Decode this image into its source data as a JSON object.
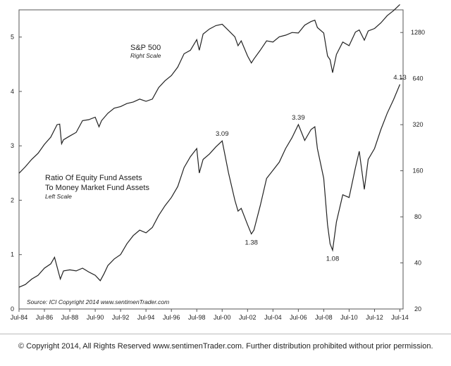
{
  "chart_data": {
    "type": "line",
    "x_ticks": [
      "Jul-84",
      "Jul-86",
      "Jul-88",
      "Jul-90",
      "Jul-92",
      "Jul-94",
      "Jul-96",
      "Jul-98",
      "Jul-00",
      "Jul-02",
      "Jul-04",
      "Jul-06",
      "Jul-08",
      "Jul-10",
      "Jul-12",
      "Jul-14"
    ],
    "xlim": [
      1984.5,
      2014.75
    ],
    "left_axis": {
      "ticks": [
        "0",
        "1",
        "2",
        "3",
        "4",
        "5"
      ],
      "ylim": [
        0,
        5.5
      ]
    },
    "right_axis": {
      "ticks": [
        "20",
        "40",
        "80",
        "160",
        "320",
        "640",
        "1280"
      ],
      "ylim": [
        20,
        1800
      ],
      "scale": "log"
    },
    "series": [
      {
        "name": "S&P 500",
        "axis": "right",
        "label": "S&P 500",
        "sublabel": "Right Scale",
        "points": [
          [
            1984.5,
            154
          ],
          [
            1985.0,
            170
          ],
          [
            1985.5,
            190
          ],
          [
            1986.0,
            208
          ],
          [
            1986.5,
            238
          ],
          [
            1987.0,
            265
          ],
          [
            1987.5,
            320
          ],
          [
            1987.7,
            323
          ],
          [
            1987.85,
            240
          ],
          [
            1988.0,
            255
          ],
          [
            1988.5,
            270
          ],
          [
            1989.0,
            285
          ],
          [
            1989.5,
            340
          ],
          [
            1990.0,
            345
          ],
          [
            1990.5,
            358
          ],
          [
            1990.8,
            310
          ],
          [
            1991.0,
            340
          ],
          [
            1991.5,
            380
          ],
          [
            1992.0,
            410
          ],
          [
            1992.5,
            420
          ],
          [
            1993.0,
            440
          ],
          [
            1993.5,
            450
          ],
          [
            1994.0,
            470
          ],
          [
            1994.5,
            455
          ],
          [
            1995.0,
            470
          ],
          [
            1995.5,
            560
          ],
          [
            1996.0,
            620
          ],
          [
            1996.5,
            670
          ],
          [
            1997.0,
            760
          ],
          [
            1997.5,
            930
          ],
          [
            1998.0,
            980
          ],
          [
            1998.5,
            1150
          ],
          [
            1998.7,
            980
          ],
          [
            1999.0,
            1250
          ],
          [
            1999.5,
            1350
          ],
          [
            2000.0,
            1420
          ],
          [
            2000.5,
            1450
          ],
          [
            2001.0,
            1320
          ],
          [
            2001.5,
            1200
          ],
          [
            2001.75,
            1050
          ],
          [
            2002.0,
            1130
          ],
          [
            2002.5,
            900
          ],
          [
            2002.8,
            810
          ],
          [
            2003.0,
            860
          ],
          [
            2003.5,
            980
          ],
          [
            2004.0,
            1130
          ],
          [
            2004.5,
            1110
          ],
          [
            2005.0,
            1200
          ],
          [
            2005.5,
            1230
          ],
          [
            2006.0,
            1280
          ],
          [
            2006.5,
            1270
          ],
          [
            2007.0,
            1430
          ],
          [
            2007.5,
            1510
          ],
          [
            2007.8,
            1540
          ],
          [
            2008.0,
            1380
          ],
          [
            2008.5,
            1270
          ],
          [
            2008.8,
            900
          ],
          [
            2009.0,
            850
          ],
          [
            2009.2,
            700
          ],
          [
            2009.5,
            920
          ],
          [
            2010.0,
            1110
          ],
          [
            2010.5,
            1050
          ],
          [
            2011.0,
            1290
          ],
          [
            2011.3,
            1330
          ],
          [
            2011.7,
            1140
          ],
          [
            2012.0,
            1310
          ],
          [
            2012.5,
            1360
          ],
          [
            2013.0,
            1480
          ],
          [
            2013.5,
            1650
          ],
          [
            2014.0,
            1780
          ],
          [
            2014.5,
            1950
          ]
        ]
      },
      {
        "name": "Ratio Of Equity Fund Assets To Money Market Fund Assets",
        "axis": "left",
        "label_lines": [
          "Ratio Of Equity Fund Assets",
          "To Money Market Fund Assets"
        ],
        "sublabel": "Left Scale",
        "points": [
          [
            1984.5,
            0.4
          ],
          [
            1985.0,
            0.45
          ],
          [
            1985.5,
            0.55
          ],
          [
            1986.0,
            0.62
          ],
          [
            1986.5,
            0.75
          ],
          [
            1987.0,
            0.83
          ],
          [
            1987.3,
            0.95
          ],
          [
            1987.75,
            0.55
          ],
          [
            1988.0,
            0.7
          ],
          [
            1988.5,
            0.72
          ],
          [
            1989.0,
            0.7
          ],
          [
            1989.5,
            0.75
          ],
          [
            1990.0,
            0.68
          ],
          [
            1990.5,
            0.62
          ],
          [
            1990.9,
            0.52
          ],
          [
            1991.2,
            0.65
          ],
          [
            1991.5,
            0.8
          ],
          [
            1992.0,
            0.92
          ],
          [
            1992.5,
            1.0
          ],
          [
            1993.0,
            1.2
          ],
          [
            1993.5,
            1.35
          ],
          [
            1994.0,
            1.45
          ],
          [
            1994.5,
            1.4
          ],
          [
            1995.0,
            1.5
          ],
          [
            1995.5,
            1.72
          ],
          [
            1996.0,
            1.9
          ],
          [
            1996.5,
            2.05
          ],
          [
            1997.0,
            2.25
          ],
          [
            1997.5,
            2.6
          ],
          [
            1998.0,
            2.8
          ],
          [
            1998.5,
            2.95
          ],
          [
            1998.7,
            2.5
          ],
          [
            1999.0,
            2.75
          ],
          [
            1999.5,
            2.85
          ],
          [
            2000.0,
            2.98
          ],
          [
            2000.5,
            3.09
          ],
          [
            2001.0,
            2.5
          ],
          [
            2001.5,
            2.0
          ],
          [
            2001.75,
            1.8
          ],
          [
            2002.0,
            1.85
          ],
          [
            2002.5,
            1.55
          ],
          [
            2002.8,
            1.38
          ],
          [
            2003.0,
            1.45
          ],
          [
            2003.5,
            1.9
          ],
          [
            2004.0,
            2.4
          ],
          [
            2004.5,
            2.55
          ],
          [
            2005.0,
            2.7
          ],
          [
            2005.5,
            2.95
          ],
          [
            2006.0,
            3.15
          ],
          [
            2006.5,
            3.39
          ],
          [
            2007.0,
            3.1
          ],
          [
            2007.5,
            3.3
          ],
          [
            2007.8,
            3.35
          ],
          [
            2008.0,
            2.95
          ],
          [
            2008.5,
            2.4
          ],
          [
            2008.8,
            1.55
          ],
          [
            2009.0,
            1.2
          ],
          [
            2009.2,
            1.08
          ],
          [
            2009.5,
            1.6
          ],
          [
            2010.0,
            2.1
          ],
          [
            2010.5,
            2.05
          ],
          [
            2011.0,
            2.6
          ],
          [
            2011.3,
            2.9
          ],
          [
            2011.7,
            2.2
          ],
          [
            2012.0,
            2.75
          ],
          [
            2012.5,
            2.95
          ],
          [
            2013.0,
            3.3
          ],
          [
            2013.5,
            3.6
          ],
          [
            2014.0,
            3.85
          ],
          [
            2014.5,
            4.13
          ]
        ]
      }
    ],
    "annotations": [
      {
        "series": 1,
        "x": 2000.5,
        "y": 3.09,
        "text": "3.09",
        "position": "above"
      },
      {
        "series": 1,
        "x": 2002.8,
        "y": 1.38,
        "text": "1.38",
        "position": "below"
      },
      {
        "series": 1,
        "x": 2006.5,
        "y": 3.39,
        "text": "3.39",
        "position": "above"
      },
      {
        "series": 1,
        "x": 2009.2,
        "y": 1.08,
        "text": "1.08",
        "position": "below"
      },
      {
        "series": 1,
        "x": 2014.5,
        "y": 4.13,
        "text": "4.13",
        "position": "above"
      }
    ],
    "source": "Source:  ICI  Copyright 2014  www.sentimenTrader.com",
    "grid": false,
    "colors": {
      "line": "#222222",
      "axis": "#555555",
      "text": "#222222"
    }
  },
  "footer": {
    "copyright": "© Copyright 2014, All Rights Reserved www.sentimenTrader.com. Further distribution prohibited without prior permission."
  }
}
